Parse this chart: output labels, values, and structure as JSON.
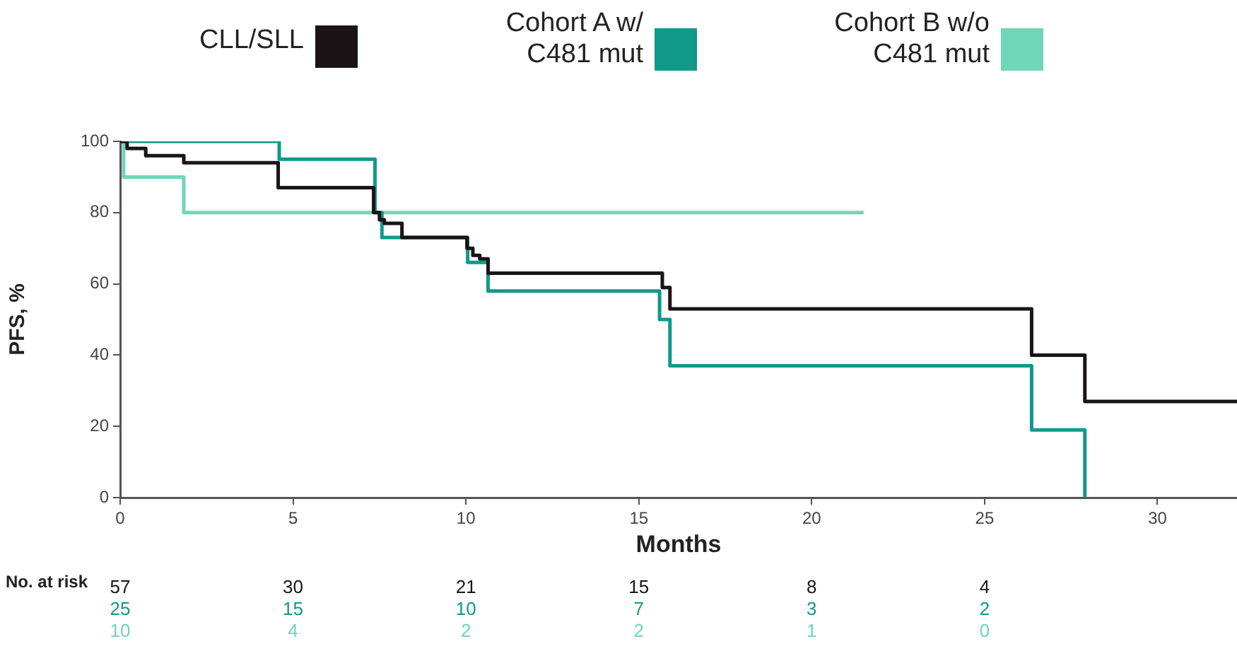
{
  "chart_data": {
    "type": "step",
    "xlabel": "Months",
    "ylabel": "PFS, %",
    "xlim": [
      0,
      32.3
    ],
    "ylim": [
      0,
      100
    ],
    "xticks": [
      0,
      5,
      10,
      15,
      20,
      25,
      30
    ],
    "yticks": [
      0,
      20,
      40,
      60,
      80,
      100
    ],
    "grid": false,
    "legend": "top",
    "marker": "none",
    "line_style": "solid",
    "series": [
      {
        "name": "CLL/SLL",
        "color": "#1a1416",
        "x": [
          0,
          0.2,
          0.74,
          1.84,
          4.57,
          7.33,
          7.5,
          7.64,
          8.15,
          10.03,
          10.2,
          10.4,
          10.64,
          15.68,
          15.9,
          26.36,
          27.9,
          32.3
        ],
        "values": [
          100,
          98,
          96,
          94,
          87,
          80,
          78,
          77,
          73,
          70,
          68,
          67,
          63,
          59,
          53,
          40,
          27,
          27
        ]
      },
      {
        "name": "Cohort A w/ C481 mut",
        "color": "#11998a",
        "x": [
          0,
          4.6,
          7.37,
          7.57,
          10.05,
          10.64,
          15.6,
          15.9,
          26.36,
          27.9
        ],
        "values": [
          100,
          95,
          80,
          73,
          66,
          58,
          50,
          37,
          19,
          0
        ]
      },
      {
        "name": "Cohort B w/o C481 mut",
        "color": "#6fd6b8",
        "x": [
          0,
          0.1,
          1.84,
          21.5
        ],
        "values": [
          100,
          90,
          80,
          80
        ]
      }
    ],
    "annotations": [
      "No. at risk",
      "57 30 21 15 8 4",
      "25 15 10 7 3 2",
      "10 4 2 2 1 0"
    ]
  }
}
